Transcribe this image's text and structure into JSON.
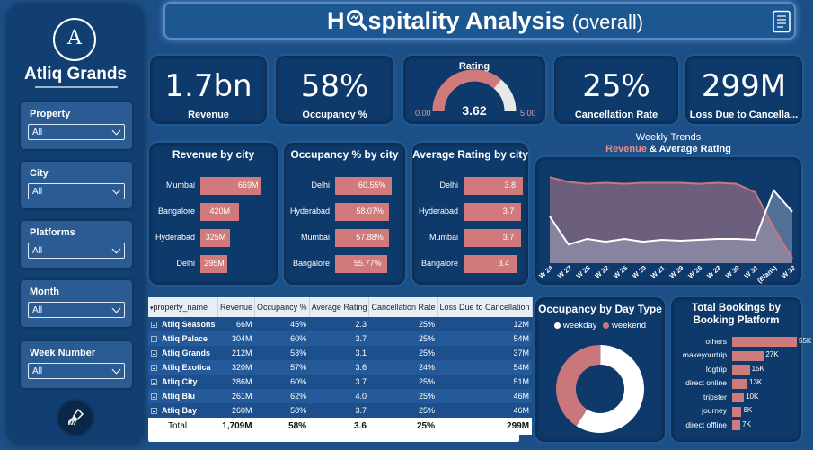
{
  "sidebar": {
    "logo_letter": "A",
    "brand": "Atliq Grands",
    "slicers": [
      {
        "label": "Property",
        "value": "All"
      },
      {
        "label": "City",
        "value": "All"
      },
      {
        "label": "Platforms",
        "value": "All"
      },
      {
        "label": "Month",
        "value": "All"
      },
      {
        "label": "Week Number",
        "value": "All"
      }
    ],
    "clear_icon": "brush-icon"
  },
  "header": {
    "title_before": "H",
    "title_after": "spitality Analysis",
    "subtitle": "(overall)",
    "magnifier_icon": "magnifier-icon",
    "report_icon": "report-icon"
  },
  "kpis": {
    "revenue": {
      "value": "1.7bn",
      "label": "Revenue"
    },
    "occupancy": {
      "value": "58%",
      "label": "Occupancy %"
    },
    "rating": {
      "title": "Rating",
      "value": "3.62",
      "min": "0.00",
      "max": "5.00",
      "fraction": 0.724
    },
    "cancellation": {
      "value": "25%",
      "label": "Cancellation Rate"
    },
    "loss": {
      "value": "299M",
      "label": "Loss Due to Cancella..."
    }
  },
  "chart_data": [
    {
      "type": "bar",
      "title": "Revenue by city",
      "categories": [
        "Mumbai",
        "Bangalore",
        "Hyderabad",
        "Delhi"
      ],
      "values": [
        669,
        420,
        325,
        295
      ],
      "labels": [
        "669M",
        "420M",
        "325M",
        "295M"
      ],
      "xlim": [
        0,
        669
      ]
    },
    {
      "type": "bar",
      "title": "Occupancy % by city",
      "categories": [
        "Delhi",
        "Hyderabad",
        "Mumbai",
        "Bangalore"
      ],
      "values": [
        60.55,
        58.07,
        57.88,
        55.77
      ],
      "labels": [
        "60.55%",
        "58.07%",
        "57.88%",
        "55.77%"
      ],
      "xlim": [
        0,
        60.55
      ]
    },
    {
      "type": "bar",
      "title": "Average Rating by city",
      "categories": [
        "Delhi",
        "Hyderabad",
        "Mumbai",
        "Bangalore"
      ],
      "values": [
        3.8,
        3.7,
        3.7,
        3.4
      ],
      "labels": [
        "3.8",
        "3.7",
        "3.7",
        "3.4"
      ],
      "xlim": [
        0,
        3.8
      ]
    },
    {
      "type": "area",
      "title": "Weekly Trends",
      "subtitle_a": "Revenue",
      "subtitle_sep": "&",
      "subtitle_b": "Average Rating",
      "categories": [
        "W 24",
        "W 27",
        "W 28",
        "W 22",
        "W 25",
        "W 20",
        "W 21",
        "W 29",
        "W 26",
        "W 23",
        "W 30",
        "W 31",
        "(Blank)",
        "W 32"
      ],
      "series": [
        {
          "name": "Revenue",
          "color": "#c9777b",
          "values": [
            0.92,
            0.87,
            0.85,
            0.86,
            0.85,
            0.86,
            0.86,
            0.86,
            0.85,
            0.86,
            0.85,
            0.76,
            0.38,
            0.05
          ]
        },
        {
          "name": "Average Rating",
          "color": "#ffffff",
          "values": [
            0.5,
            0.2,
            0.26,
            0.23,
            0.26,
            0.23,
            0.25,
            0.24,
            0.25,
            0.26,
            0.26,
            0.25,
            0.78,
            0.55
          ]
        }
      ]
    },
    {
      "type": "pie",
      "title": "Occupancy by Day Type",
      "legend": [
        "weekday",
        "weekend"
      ],
      "colors": [
        "#ffffff",
        "#c9777b"
      ],
      "values": [
        59,
        41
      ]
    },
    {
      "type": "bar",
      "title": "Total Bookings by Booking Platform",
      "categories": [
        "others",
        "makeyourtrip",
        "logtrip",
        "direct online",
        "tripster",
        "journey",
        "direct offline"
      ],
      "values": [
        55,
        27,
        15,
        13,
        10,
        8,
        7
      ],
      "labels": [
        "55K",
        "27K",
        "15K",
        "13K",
        "10K",
        "8K",
        "7K"
      ],
      "xlim": [
        0,
        55
      ]
    }
  ],
  "table": {
    "columns": [
      "property_name",
      "Revenue",
      "Occupancy %",
      "Average Rating",
      "Cancellation Rate",
      "Loss Due to Cancellation"
    ],
    "rows": [
      [
        "Atliq Seasons",
        "66M",
        "45%",
        "2.3",
        "25%",
        "12M"
      ],
      [
        "Atliq Palace",
        "304M",
        "60%",
        "3.7",
        "25%",
        "54M"
      ],
      [
        "Atliq Grands",
        "212M",
        "53%",
        "3.1",
        "25%",
        "37M"
      ],
      [
        "Atliq Exotica",
        "320M",
        "57%",
        "3.6",
        "24%",
        "54M"
      ],
      [
        "Atliq City",
        "286M",
        "60%",
        "3.7",
        "25%",
        "51M"
      ],
      [
        "Atliq Blu",
        "261M",
        "62%",
        "4.0",
        "25%",
        "46M"
      ],
      [
        "Atliq Bay",
        "260M",
        "58%",
        "3.7",
        "25%",
        "46M"
      ]
    ],
    "total": [
      "Total",
      "1,709M",
      "58%",
      "3.6",
      "25%",
      "299M"
    ]
  }
}
